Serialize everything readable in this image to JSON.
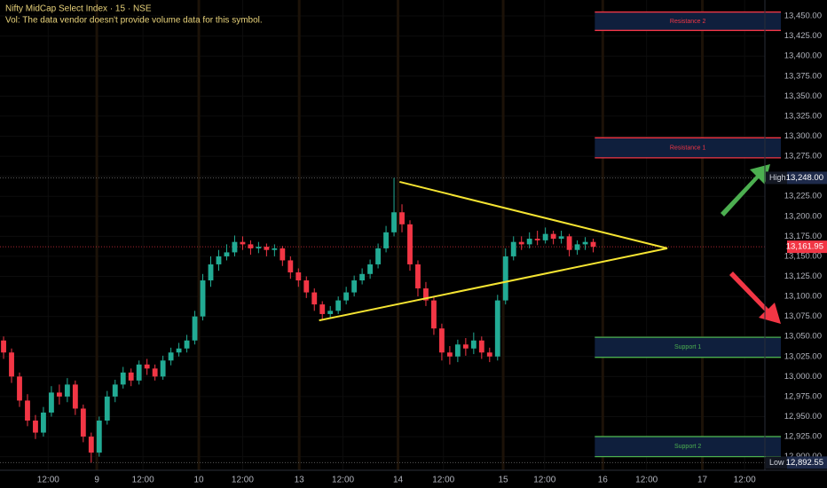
{
  "chart_data": {
    "type": "candlestick",
    "title": "Nifty MidCap Select Index · 15 · NSE",
    "subtitle": "Vol: The data vendor doesn't provide volume data for this symbol.",
    "up_color": "#22ab94",
    "down_color": "#f23645",
    "open": [
      13045,
      13030,
      13000,
      12970,
      12945,
      12930,
      12955,
      12980,
      12975,
      12990,
      12960,
      12925,
      12905,
      12945,
      12975,
      12990,
      13005,
      12995,
      13015,
      13010,
      13000,
      13020,
      13030,
      13035,
      13045,
      13075,
      13120,
      13140,
      13150,
      13155,
      13168,
      13165,
      13160,
      13162,
      13158,
      13160,
      13145,
      13130,
      13120,
      13105,
      13090,
      13078,
      13082,
      13095,
      13105,
      13120,
      13128,
      13140,
      13160,
      13180,
      13205,
      13190,
      13140,
      13110,
      13095,
      13060,
      13030,
      13025,
      13040,
      13035,
      13045,
      13030,
      13025,
      13095,
      13150,
      13168,
      13165,
      13172,
      13170,
      13178,
      13172,
      13175,
      13158,
      13165,
      13168
    ],
    "high": [
      13050,
      13035,
      13005,
      12978,
      12952,
      12962,
      12988,
      12990,
      12998,
      12995,
      12965,
      12930,
      12950,
      12982,
      12996,
      13012,
      13010,
      13020,
      13022,
      13015,
      13026,
      13036,
      13042,
      13052,
      13082,
      13128,
      13150,
      13158,
      13165,
      13176,
      13175,
      13170,
      13168,
      13166,
      13165,
      13163,
      13150,
      13135,
      13125,
      13110,
      13094,
      13088,
      13100,
      13112,
      13126,
      13135,
      13146,
      13166,
      13188,
      13248,
      13215,
      13195,
      13145,
      13118,
      13100,
      13066,
      13038,
      13046,
      13048,
      13055,
      13050,
      13036,
      13102,
      13160,
      13175,
      13175,
      13180,
      13182,
      13186,
      13182,
      13182,
      13178,
      13170,
      13174,
      13172
    ],
    "low": [
      13022,
      12992,
      12962,
      12938,
      12922,
      12925,
      12950,
      12965,
      12968,
      12952,
      12918,
      12892.55,
      12900,
      12940,
      12968,
      12985,
      12988,
      12990,
      13002,
      12995,
      12996,
      13014,
      13025,
      13030,
      13040,
      13070,
      13112,
      13132,
      13145,
      13150,
      13158,
      13152,
      13154,
      13150,
      13150,
      13138,
      13122,
      13112,
      13098,
      13082,
      13070,
      13072,
      13078,
      13090,
      13100,
      13115,
      13122,
      13135,
      13155,
      13175,
      13180,
      13132,
      13100,
      13088,
      13052,
      13020,
      13015,
      13018,
      13026,
      13028,
      13022,
      13018,
      13020,
      13090,
      13145,
      13158,
      13160,
      13164,
      13166,
      13165,
      13166,
      13150,
      13152,
      13158,
      13155
    ],
    "close": [
      13030,
      13000,
      12970,
      12945,
      12930,
      12955,
      12980,
      12975,
      12990,
      12960,
      12925,
      12905,
      12945,
      12975,
      12990,
      13005,
      12995,
      13015,
      13010,
      13000,
      13020,
      13030,
      13035,
      13045,
      13075,
      13120,
      13140,
      13150,
      13155,
      13168,
      13165,
      13160,
      13162,
      13158,
      13160,
      13145,
      13130,
      13120,
      13105,
      13090,
      13078,
      13082,
      13095,
      13105,
      13120,
      13128,
      13140,
      13160,
      13180,
      13205,
      13190,
      13140,
      13110,
      13095,
      13060,
      13030,
      13025,
      13040,
      13035,
      13045,
      13030,
      13025,
      13095,
      13150,
      13168,
      13165,
      13172,
      13170,
      13178,
      13172,
      13175,
      13158,
      13165,
      13168,
      13161.95
    ],
    "xlim": [
      -0.45,
      97.55
    ],
    "xticks": [
      {
        "value": 5.6,
        "label": "12:00"
      },
      {
        "value": 11.7,
        "label": "9"
      },
      {
        "value": 17.5,
        "label": "12:00"
      },
      {
        "value": 24.5,
        "label": "10"
      },
      {
        "value": 30,
        "label": "12:00"
      },
      {
        "value": 37.1,
        "label": "13"
      },
      {
        "value": 42.6,
        "label": "12:00"
      },
      {
        "value": 49.5,
        "label": "14"
      },
      {
        "value": 55.2,
        "label": "12:00"
      },
      {
        "value": 62.7,
        "label": "15"
      },
      {
        "value": 67.9,
        "label": "12:00"
      },
      {
        "value": 75.2,
        "label": "16"
      },
      {
        "value": 80.7,
        "label": "12:00"
      },
      {
        "value": 87.7,
        "label": "17"
      },
      {
        "value": 93,
        "label": "12:00"
      }
    ],
    "ylim": [
      12883,
      13470
    ],
    "yticks": [
      {
        "value": 12900,
        "label": "12,900.00"
      },
      {
        "value": 12925,
        "label": "12,925.00"
      },
      {
        "value": 12950,
        "label": "12,950.00"
      },
      {
        "value": 12975,
        "label": "12,975.00"
      },
      {
        "value": 13000,
        "label": "13,000.00"
      },
      {
        "value": 13025,
        "label": "13,025.00"
      },
      {
        "value": 13050,
        "label": "13,050.00"
      },
      {
        "value": 13075,
        "label": "13,075.00"
      },
      {
        "value": 13100,
        "label": "13,100.00"
      },
      {
        "value": 13125,
        "label": "13,125.00"
      },
      {
        "value": 13150,
        "label": "13,150.00"
      },
      {
        "value": 13175,
        "label": "13,175.00"
      },
      {
        "value": 13200,
        "label": "13,200.00"
      },
      {
        "value": 13225,
        "label": "13,225.00"
      },
      {
        "value": 13250,
        "label": "13,250.00"
      },
      {
        "value": 13275,
        "label": "13,275.00"
      },
      {
        "value": 13300,
        "label": "13,300.00"
      },
      {
        "value": 13325,
        "label": "13,325.00"
      },
      {
        "value": 13350,
        "label": "13,350.00"
      },
      {
        "value": 13375,
        "label": "13,375.00"
      },
      {
        "value": 13400,
        "label": "13,400.00"
      },
      {
        "value": 13425,
        "label": "13,425.00"
      },
      {
        "value": 13450,
        "label": "13,450.00"
      }
    ],
    "zones": [
      {
        "name": "Resistance 2",
        "top": 13455,
        "bottom": 13432,
        "x": [
          74.2,
          97.55
        ],
        "color": "#f23645"
      },
      {
        "name": "Resistance 1",
        "top": 13298,
        "bottom": 13273,
        "x": [
          74.2,
          97.55
        ],
        "color": "#f23645"
      },
      {
        "name": "Support 1",
        "top": 13049,
        "bottom": 13024,
        "x": [
          74.2,
          97.55
        ],
        "color": "#4caf50"
      },
      {
        "name": "Support 2",
        "top": 12925,
        "bottom": 12900,
        "x": [
          74.2,
          97.55
        ],
        "color": "#4caf50"
      }
    ],
    "trendlines": [
      {
        "x": [
          49.7,
          83.3
        ],
        "y": [
          13243,
          13160
        ],
        "color": "#f5e432"
      },
      {
        "x": [
          39.6,
          83.3
        ],
        "y": [
          13070,
          13160
        ],
        "color": "#f5e432"
      }
    ],
    "high_marker": {
      "label": "High",
      "value": 13248,
      "value_label": "13,248.00"
    },
    "low_marker": {
      "label": "Low",
      "value": 12892.55,
      "value_label": "12,892.55"
    },
    "last_price": {
      "value": 13161.95,
      "value_label": "13,161.95"
    }
  }
}
